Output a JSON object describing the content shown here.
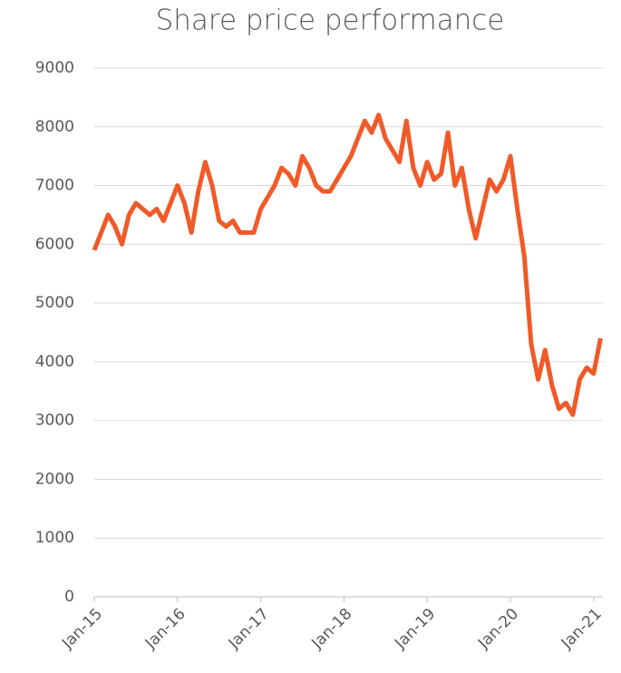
{
  "chart_data": {
    "type": "line",
    "title": "Share price performance",
    "x": [
      "2015-01",
      "2015-02",
      "2015-03",
      "2015-04",
      "2015-05",
      "2015-06",
      "2015-07",
      "2015-08",
      "2015-09",
      "2015-10",
      "2015-11",
      "2015-12",
      "2016-01",
      "2016-02",
      "2016-03",
      "2016-04",
      "2016-05",
      "2016-06",
      "2016-07",
      "2016-08",
      "2016-09",
      "2016-10",
      "2016-11",
      "2016-12",
      "2017-01",
      "2017-02",
      "2017-03",
      "2017-04",
      "2017-05",
      "2017-06",
      "2017-07",
      "2017-08",
      "2017-09",
      "2017-10",
      "2017-11",
      "2017-12",
      "2018-01",
      "2018-02",
      "2018-03",
      "2018-04",
      "2018-05",
      "2018-06",
      "2018-07",
      "2018-08",
      "2018-09",
      "2018-10",
      "2018-11",
      "2018-12",
      "2019-01",
      "2019-02",
      "2019-03",
      "2019-04",
      "2019-05",
      "2019-06",
      "2019-07",
      "2019-08",
      "2019-09",
      "2019-10",
      "2019-11",
      "2019-12",
      "2020-01",
      "2020-02",
      "2020-03",
      "2020-04",
      "2020-05",
      "2020-06",
      "2020-07",
      "2020-08",
      "2020-09",
      "2020-10",
      "2020-11",
      "2020-12",
      "2021-01",
      "2021-02"
    ],
    "series": [
      {
        "name": "Share price",
        "color": "#f05a28",
        "values": [
          5900,
          6200,
          6500,
          6300,
          6000,
          6500,
          6700,
          6600,
          6500,
          6600,
          6400,
          6700,
          7000,
          6700,
          6200,
          6900,
          7400,
          7000,
          6400,
          6300,
          6400,
          6200,
          6200,
          6200,
          6600,
          6800,
          7000,
          7300,
          7200,
          7000,
          7500,
          7300,
          7000,
          6900,
          6900,
          7100,
          7300,
          7500,
          7800,
          8100,
          7900,
          8200,
          7800,
          7600,
          7400,
          8100,
          7300,
          7000,
          7400,
          7100,
          7200,
          7900,
          7000,
          7300,
          6600,
          6100,
          6600,
          7100,
          6900,
          7100,
          7500,
          6600,
          5800,
          4300,
          3700,
          4200,
          3600,
          3200,
          3300,
          3100,
          3700,
          3900,
          3800,
          4400
        ]
      }
    ],
    "xlim": [
      "2015-01",
      "2021-02"
    ],
    "xticks": [
      {
        "value": "2015-01",
        "label": "Jan-15"
      },
      {
        "value": "2016-01",
        "label": "Jan-16"
      },
      {
        "value": "2017-01",
        "label": "Jan-17"
      },
      {
        "value": "2018-01",
        "label": "Jan-18"
      },
      {
        "value": "2019-01",
        "label": "Jan-19"
      },
      {
        "value": "2020-01",
        "label": "Jan-20"
      },
      {
        "value": "2021-01",
        "label": "Jan-21"
      }
    ],
    "ylim": [
      0,
      9000
    ],
    "yticks": [
      0,
      1000,
      2000,
      3000,
      4000,
      5000,
      6000,
      7000,
      8000,
      9000
    ],
    "grid": true
  }
}
